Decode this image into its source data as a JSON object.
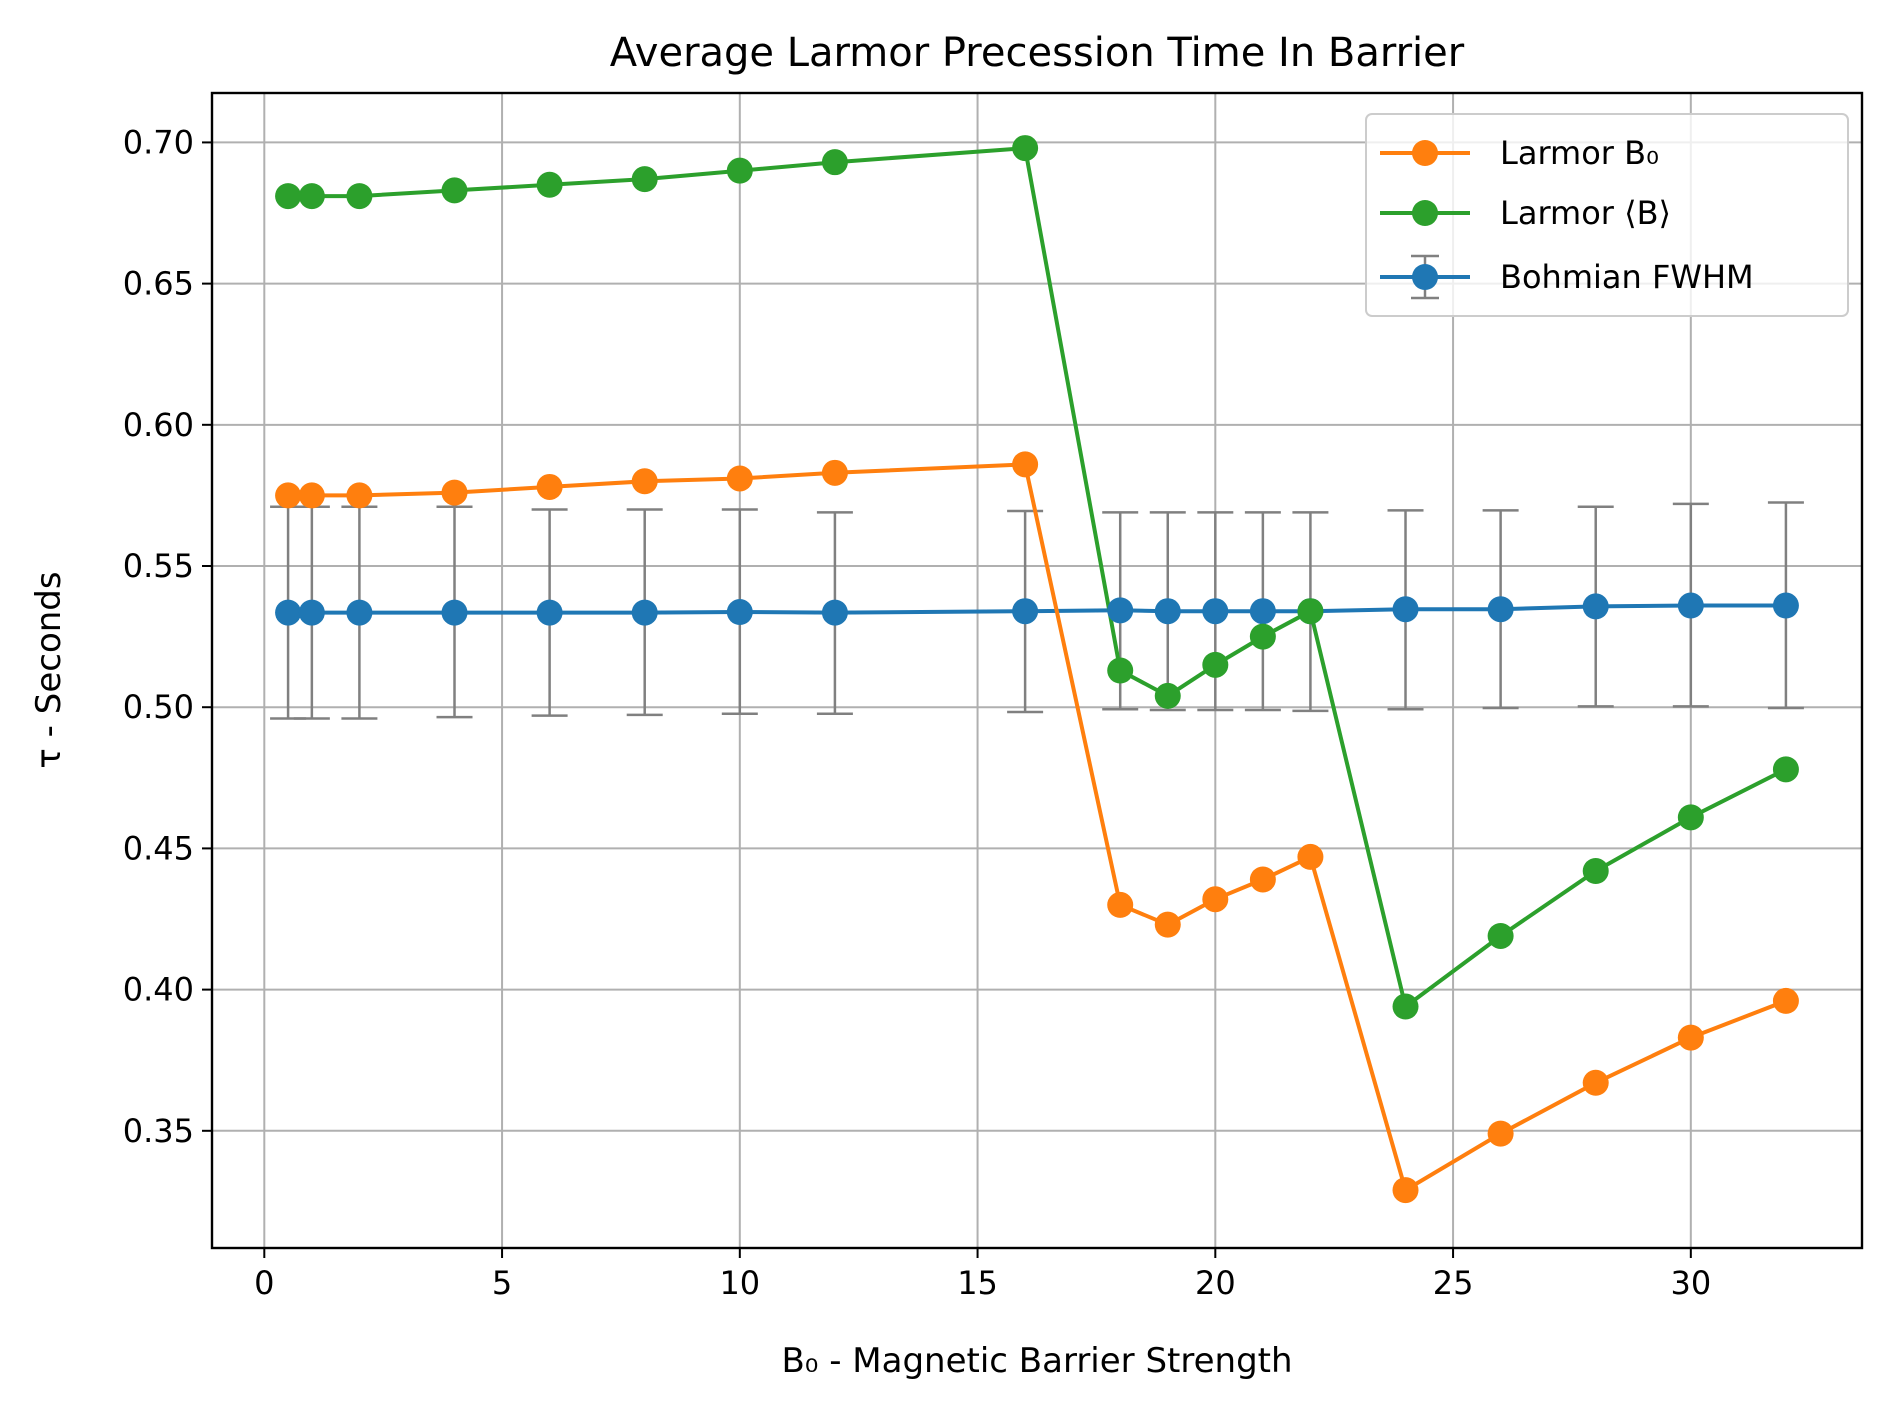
{
  "chart_data": {
    "type": "line",
    "title": "Average Larmor Precession Time In Barrier",
    "xlabel": "B₀ - Magnetic Barrier Strength",
    "ylabel": "τ - Seconds",
    "xlim": [
      -1.1,
      33.6
    ],
    "ylim": [
      0.3085,
      0.7175
    ],
    "xticks": [
      0,
      5,
      10,
      15,
      20,
      25,
      30
    ],
    "yticks": [
      0.35,
      0.4,
      0.45,
      0.5,
      0.55,
      0.6,
      0.65,
      0.7
    ],
    "xtick_labels": [
      "0",
      "5",
      "10",
      "15",
      "20",
      "25",
      "30"
    ],
    "ytick_labels": [
      "0.35",
      "0.40",
      "0.45",
      "0.50",
      "0.55",
      "0.60",
      "0.65",
      "0.70"
    ],
    "grid": true,
    "legend_position": "top-right",
    "x": [
      0.5,
      1,
      2,
      4,
      6,
      8,
      10,
      12,
      16,
      18,
      19,
      20,
      21,
      22,
      24,
      26,
      28,
      30,
      32
    ],
    "series": [
      {
        "name": "Larmor B₀",
        "color": "#ff7f0e",
        "values": [
          0.575,
          0.575,
          0.575,
          0.576,
          0.578,
          0.58,
          0.581,
          0.583,
          0.586,
          0.43,
          0.423,
          0.432,
          0.439,
          0.447,
          0.329,
          0.349,
          0.367,
          0.383,
          0.396
        ]
      },
      {
        "name": "Larmor ⟨B⟩",
        "color": "#2ca02c",
        "values": [
          0.681,
          0.681,
          0.681,
          0.683,
          0.685,
          0.687,
          0.69,
          0.693,
          0.698,
          0.513,
          0.504,
          0.515,
          0.525,
          0.534,
          0.394,
          0.419,
          0.442,
          0.461,
          0.478
        ]
      },
      {
        "name": "Bohmian FWHM",
        "color": "#1f77b4",
        "error_color": "#808080",
        "values": [
          0.5335,
          0.5335,
          0.5335,
          0.5335,
          0.5335,
          0.5335,
          0.5337,
          0.5335,
          0.534,
          0.5343,
          0.534,
          0.534,
          0.534,
          0.534,
          0.5347,
          0.5347,
          0.5357,
          0.536,
          0.536
        ],
        "err_low": [
          0.496,
          0.496,
          0.496,
          0.4965,
          0.497,
          0.4973,
          0.4977,
          0.4977,
          0.4983,
          0.4993,
          0.499,
          0.499,
          0.499,
          0.4987,
          0.4993,
          0.4997,
          0.5003,
          0.5003,
          0.4997
        ],
        "err_high": [
          0.571,
          0.571,
          0.571,
          0.571,
          0.57,
          0.57,
          0.57,
          0.569,
          0.5695,
          0.569,
          0.569,
          0.569,
          0.569,
          0.569,
          0.5697,
          0.5697,
          0.571,
          0.572,
          0.5725
        ]
      }
    ]
  }
}
